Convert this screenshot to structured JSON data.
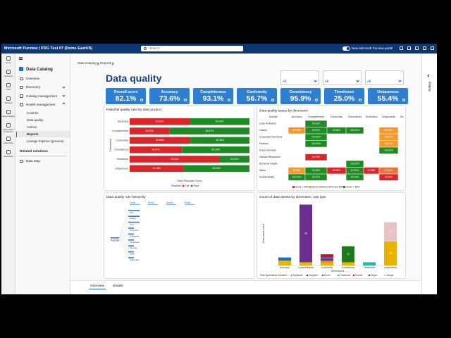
{
  "header": {
    "app": "Microsoft Purview | PDG Test 07 (Demo EastUS)",
    "search": "Search",
    "toggle": "New Microsoft Purview portal"
  },
  "rail": [
    "Home",
    "Solutions",
    "Learn",
    "Settings",
    "Data Catalog",
    "Information Protection",
    "Data Map",
    "Workflows"
  ],
  "sidebar": {
    "title": "Data Catalog",
    "items": [
      {
        "label": "Overview"
      },
      {
        "label": "Discovery",
        "expandable": true
      },
      {
        "label": "Catalog management",
        "expandable": true
      },
      {
        "label": "Health management",
        "expandable": true,
        "children": [
          {
            "label": "Controls"
          },
          {
            "label": "Data quality"
          },
          {
            "label": "Actions"
          },
          {
            "label": "Reports",
            "selected": true
          },
          {
            "label": "Lineage Explorer (preview)"
          }
        ]
      }
    ],
    "related_title": "Related solutions",
    "related": [
      "Data Map"
    ]
  },
  "breadcrumb": [
    "Data Catalog",
    "Reports"
  ],
  "page_title": "Data quality",
  "filters": [
    {
      "label": "Governance domains",
      "value": "All"
    },
    {
      "label": "Data product",
      "value": "All"
    },
    {
      "label": "Data product status",
      "value": "All"
    }
  ],
  "filters_pane": "Filters",
  "kpis": [
    {
      "label": "Overall score",
      "value": "82.1%"
    },
    {
      "label": "Accuracy",
      "value": "73.6%"
    },
    {
      "label": "Completeness",
      "value": "93.1%"
    },
    {
      "label": "Conformity",
      "value": "56.7%"
    },
    {
      "label": "Consistency",
      "value": "95.9%"
    },
    {
      "label": "Timeliness",
      "value": "25.0%"
    },
    {
      "label": "Uniqueness",
      "value": "55.4%"
    }
  ],
  "chart_data": [
    {
      "type": "bar",
      "horizontal": true,
      "stacked": true,
      "title": "Pass/fail quality ratio by data product",
      "categories": [
        "Accuracy",
        "Completeness",
        "Conformity",
        "Consistency",
        "Timeliness",
        "Uniqueness"
      ],
      "series": [
        {
          "name": "Fail",
          "color": "#d9262b",
          "values": [
            50,
            33.33,
            50.64,
            43.67,
            75,
            44.94
          ],
          "value_labels": [
            "50.00%",
            "33.33%",
            "50.64%",
            "43.67%",
            "75.00%",
            "44.94%"
          ]
        },
        {
          "name": "Pass",
          "color": "#1f8b24",
          "values": [
            50,
            66.67,
            49.36,
            56.33,
            25,
            55.06
          ],
          "value_labels": [
            "50.00%",
            "66.67%",
            "49.36%",
            "56.33%",
            "25.00%",
            "55.06%"
          ]
        }
      ],
      "xlim": [
        0,
        100
      ],
      "xlabel": "Data Products Count",
      "ylabel": "Dimension",
      "legend_title": "Pass/fail"
    },
    {
      "type": "bar",
      "stacked": true,
      "title": "Count of data assets by dimension, rule type",
      "categories": [
        "Accuracy",
        "Completeness",
        "Conformity",
        "Consistency",
        "Timeliness",
        "Uniqueness"
      ],
      "series": [
        {
          "name": "CustomS...",
          "color": "#e8b400",
          "values": [
            3,
            2,
            2,
            2,
            0,
            15
          ]
        },
        {
          "name": "Duplicate",
          "color": "#e8743b",
          "values": [
            0,
            0,
            1,
            0,
            0,
            0
          ]
        },
        {
          "name": "Empty/bl...",
          "color": "#6b2d8e",
          "values": [
            0,
            36,
            1,
            0,
            0,
            0
          ]
        },
        {
          "name": "Enum",
          "color": "#1a6fc4",
          "values": [
            2,
            0,
            1,
            0,
            0,
            0
          ]
        },
        {
          "name": "Freshness",
          "color": "#2ab7a0",
          "values": [
            0,
            0,
            0,
            0,
            2,
            0
          ]
        },
        {
          "name": "Format",
          "color": "#c0182b",
          "values": [
            0,
            0,
            2,
            0,
            0,
            0
          ]
        },
        {
          "name": "Regex",
          "color": "#1e7a1e",
          "values": [
            0,
            0,
            0,
            10,
            0,
            0
          ]
        },
        {
          "name": "Unique",
          "color": "#e8c4c4",
          "values": [
            0,
            0,
            0,
            0,
            0,
            12
          ]
        }
      ],
      "ylim": [
        0,
        40
      ],
      "xlabel": "Dimensions",
      "ylabel": "Data asset count",
      "legend_title": "RuleTypeName"
    }
  ],
  "heatmap": {
    "title": "Data quality status by dimension",
    "columns": [
      "Domain",
      "Accuracy",
      "Completeness",
      "Conformity",
      "Consistency",
      "Timeliness",
      "Uniqueness",
      "Ov"
    ],
    "rows": [
      {
        "domain": "Care Providers",
        "cells": [
          null,
          {
            "text": "90.00%",
            "color": "#1f8b24"
          },
          null,
          null,
          null,
          null,
          null
        ]
      },
      {
        "domain": "Claims",
        "cells": [
          {
            "text": "66.00%",
            "color": "#f29a2e"
          },
          {
            "text": "80.50%",
            "color": "#1f8b24"
          },
          {
            "text": "52.98%",
            "color": "#1f8b24"
          },
          {
            "text": "100.00%",
            "color": "#1f8b24"
          },
          null,
          {
            "text": "50.00%",
            "color": "#f29a2e"
          },
          null
        ]
      },
      {
        "domain": "Corporate Functions",
        "cells": [
          null,
          {
            "text": "100.00%",
            "color": "#1f8b24"
          },
          null,
          null,
          null,
          {
            "text": "49.62%",
            "color": "#f29a2e"
          },
          null
        ]
      },
      {
        "domain": "Finance",
        "cells": [
          null,
          {
            "text": "100.00%",
            "color": "#1f8b24"
          },
          null,
          null,
          null,
          {
            "text": "50.00%",
            "color": "#f29a2e"
          },
          null
        ]
      },
      {
        "domain": "Fraud Services",
        "cells": [
          null,
          null,
          null,
          null,
          null,
          {
            "text": "100.00%",
            "color": "#1f8b24"
          },
          null
        ]
      },
      {
        "domain": "Human Resources",
        "cells": [
          null,
          {
            "text": "64.75%",
            "color": "#d9262b"
          },
          null,
          null,
          null,
          null,
          null
        ]
      },
      {
        "domain": "Personal Health",
        "cells": [
          null,
          null,
          null,
          {
            "text": "100.00%",
            "color": "#1f8b24"
          },
          null,
          null,
          null
        ]
      },
      {
        "domain": "Sales",
        "cells": [
          {
            "text": "70.00%",
            "color": "#f29a2e"
          },
          {
            "text": "94.38%",
            "color": "#1f8b24"
          },
          {
            "text": "45.38%",
            "color": "#d9262b"
          },
          {
            "text": "87.59%",
            "color": "#1f8b24"
          },
          {
            "text": "12.38%",
            "color": "#d9262b"
          },
          {
            "text": "27.65%",
            "color": "#e8743b"
          },
          null
        ]
      },
      {
        "domain": "Sustainability",
        "cells": [
          {
            "text": "100.00%",
            "color": "#1f8b24"
          },
          {
            "text": "92.97%",
            "color": "#1f8b24"
          },
          null,
          {
            "text": "94.34%",
            "color": "#1f8b24"
          },
          null,
          {
            "text": "40.90%",
            "color": "#d9262b"
          },
          null
        ]
      }
    ],
    "legend": [
      {
        "label": "Score < 50%",
        "color": "#d9262b"
      },
      {
        "label": "Score between 50% and 80%",
        "color": "#f29a2e"
      },
      {
        "label": "Score > 80%",
        "color": "#1f8b24"
      }
    ]
  },
  "hierarchy": {
    "title": "Data quality rule hierarchy",
    "levels": [
      "Dom...",
      "Prod...",
      "Asset...",
      "Rule..."
    ],
    "root": "Pass/fail",
    "children": [
      "Dat...",
      "Usage",
      "Cor...",
      "Corp Pro...",
      "Sustainab...",
      "Corporate...",
      "Finance",
      "Sales",
      "Fraud Ser..."
    ]
  },
  "tabs": [
    {
      "label": "Overview",
      "selected": true
    },
    {
      "label": "Details"
    }
  ]
}
